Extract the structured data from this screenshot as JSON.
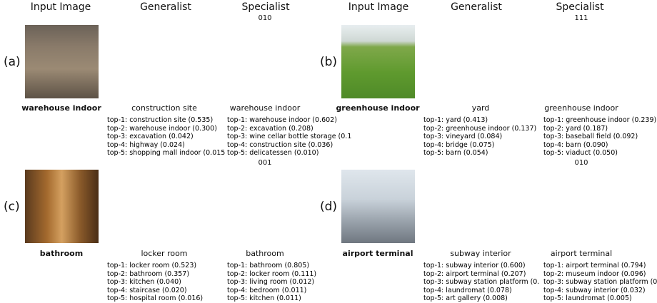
{
  "headers": [
    "Input Image",
    "Generalist",
    "Specialist",
    "Input Image",
    "Generalist",
    "Specialist"
  ],
  "panels": [
    {
      "label": "(a)",
      "input_caption": "warehouse indoor",
      "generalist": {
        "prediction": "construction site",
        "top5": [
          "top-1: construction site (0.535)",
          "top-2: warehouse indoor (0.300)",
          "top-3: excavation (0.042)",
          "top-4: highway (0.024)",
          "top-5: shopping mall indoor (0.015)"
        ]
      },
      "specialist": {
        "code": "010",
        "prediction": "warehouse indoor",
        "top5": [
          "top-1: warehouse indoor (0.602)",
          "top-2: excavation (0.208)",
          "top-3: wine cellar bottle storage (0.1",
          "top-4: construction site (0.036)",
          "top-5: delicatessen (0.010)"
        ]
      }
    },
    {
      "label": "(b)",
      "input_caption": "greenhouse indoor",
      "generalist": {
        "prediction": "yard",
        "top5": [
          "top-1: yard (0.413)",
          "top-2: greenhouse indoor (0.137)",
          "top-3: vineyard (0.084)",
          "top-4: bridge (0.075)",
          "top-5: barn (0.054)"
        ]
      },
      "specialist": {
        "code": "111",
        "prediction": "greenhouse indoor",
        "top5": [
          "top-1: greenhouse indoor (0.239)",
          "top-2: yard (0.187)",
          "top-3: baseball field (0.092)",
          "top-4: barn (0.090)",
          "top-5: viaduct (0.050)"
        ]
      }
    },
    {
      "label": "(c)",
      "input_caption": "bathroom",
      "generalist": {
        "prediction": "locker room",
        "top5": [
          "top-1: locker room (0.523)",
          "top-2: bathroom (0.357)",
          "top-3: kitchen (0.040)",
          "top-4: staircase (0.020)",
          "top-5: hospital room (0.016)"
        ]
      },
      "specialist": {
        "code": "001",
        "prediction": "bathroom",
        "top5": [
          "top-1: bathroom (0.805)",
          "top-2: locker room (0.111)",
          "top-3: living room (0.012)",
          "top-4: bedroom (0.011)",
          "top-5: kitchen (0.011)"
        ]
      }
    },
    {
      "label": "(d)",
      "input_caption": "airport terminal",
      "generalist": {
        "prediction": "subway interior",
        "top5": [
          "top-1: subway interior (0.600)",
          "top-2: airport terminal (0.207)",
          "top-3: subway station platform (0.",
          "top-4: laundromat (0.078)",
          "top-5: art gallery (0.008)"
        ]
      },
      "specialist": {
        "code": "010",
        "prediction": "airport terminal",
        "top5": [
          "top-1: airport terminal (0.794)",
          "top-2: museum indoor (0.096)",
          "top-3: subway station platform (0",
          "top-4: subway interior (0.032)",
          "top-5: laundromat (0.005)"
        ]
      }
    }
  ]
}
